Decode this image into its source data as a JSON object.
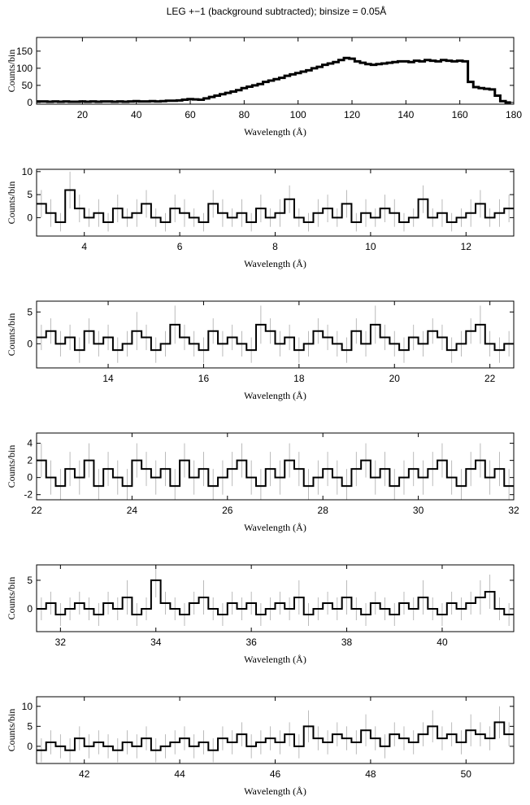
{
  "chart_data": [
    {
      "type": "step",
      "title": "LEG +−1 (background subtracted); binsize = 0.05Å",
      "x_label": "Wavelength (Å)",
      "y_label": "Counts/bin",
      "color": "#000000",
      "xlim": [
        3,
        180
      ],
      "ylim": [
        -5,
        190
      ],
      "xticks": [
        20,
        40,
        60,
        80,
        100,
        120,
        140,
        160,
        180
      ],
      "yticks": [
        0,
        50,
        100,
        150
      ],
      "x": [
        4,
        6,
        8,
        10,
        12,
        14,
        16,
        18,
        20,
        22,
        24,
        26,
        28,
        30,
        32,
        34,
        36,
        38,
        40,
        42,
        44,
        46,
        48,
        50,
        52,
        54,
        56,
        58,
        60,
        62,
        64,
        66,
        68,
        70,
        72,
        74,
        76,
        78,
        80,
        82,
        84,
        86,
        88,
        90,
        92,
        94,
        96,
        98,
        100,
        102,
        104,
        106,
        108,
        110,
        112,
        114,
        116,
        118,
        120,
        122,
        124,
        126,
        128,
        130,
        132,
        134,
        136,
        138,
        140,
        142,
        144,
        146,
        148,
        150,
        152,
        154,
        156,
        158,
        160,
        162,
        164,
        166,
        168,
        170,
        172,
        174,
        176,
        178
      ],
      "values": [
        3,
        3,
        2,
        3,
        2,
        3,
        2,
        2,
        3,
        2,
        3,
        2,
        3,
        3,
        2,
        3,
        2,
        3,
        4,
        3,
        3,
        4,
        3,
        4,
        5,
        5,
        6,
        8,
        10,
        9,
        8,
        12,
        16,
        20,
        24,
        28,
        32,
        36,
        42,
        46,
        50,
        54,
        60,
        64,
        68,
        72,
        78,
        82,
        86,
        90,
        94,
        100,
        104,
        110,
        114,
        118,
        124,
        130,
        128,
        120,
        116,
        112,
        110,
        112,
        114,
        116,
        118,
        120,
        120,
        118,
        122,
        120,
        124,
        122,
        120,
        124,
        122,
        120,
        122,
        120,
        60,
        45,
        42,
        40,
        38,
        20,
        4,
        0
      ]
    },
    {
      "type": "step",
      "x_label": "Wavelength (Å)",
      "y_label": "Counts/bin",
      "color": "#000000",
      "error_color": "#aaaaaa",
      "xlim": [
        3,
        13
      ],
      "ylim": [
        -4,
        10.5
      ],
      "xticks": [
        4,
        6,
        8,
        10,
        12
      ],
      "yticks": [
        0,
        5,
        10
      ],
      "x": [
        3.1,
        3.3,
        3.5,
        3.7,
        3.9,
        4.1,
        4.3,
        4.5,
        4.7,
        4.9,
        5.1,
        5.3,
        5.5,
        5.7,
        5.9,
        6.1,
        6.3,
        6.5,
        6.7,
        6.9,
        7.1,
        7.3,
        7.5,
        7.7,
        7.9,
        8.1,
        8.3,
        8.5,
        8.7,
        8.9,
        9.1,
        9.3,
        9.5,
        9.7,
        9.9,
        10.1,
        10.3,
        10.5,
        10.7,
        10.9,
        11.1,
        11.3,
        11.5,
        11.7,
        11.9,
        12.1,
        12.3,
        12.5,
        12.7,
        12.9
      ],
      "values": [
        3,
        1,
        -1,
        6,
        2,
        0,
        1,
        -1,
        2,
        0,
        1,
        3,
        0,
        -1,
        2,
        1,
        0,
        -1,
        3,
        1,
        0,
        1,
        -1,
        2,
        0,
        1,
        4,
        0,
        -1,
        1,
        2,
        0,
        3,
        -1,
        1,
        0,
        2,
        1,
        -1,
        0,
        4,
        0,
        1,
        -1,
        0,
        1,
        3,
        0,
        1,
        2
      ],
      "errors": [
        3,
        3,
        2,
        4,
        3,
        2,
        3,
        2,
        3,
        2,
        3,
        3,
        2,
        2,
        3,
        3,
        2,
        2,
        3,
        3,
        2,
        3,
        2,
        3,
        2,
        3,
        3,
        2,
        2,
        3,
        3,
        2,
        3,
        2,
        3,
        2,
        3,
        3,
        2,
        2,
        3,
        2,
        3,
        2,
        2,
        3,
        3,
        2,
        3,
        3
      ]
    },
    {
      "type": "step",
      "x_label": "Wavelength (Å)",
      "y_label": "Counts/bin",
      "color": "#000000",
      "error_color": "#aaaaaa",
      "xlim": [
        12.5,
        22.5
      ],
      "ylim": [
        -3.8,
        6.7
      ],
      "xticks": [
        14,
        16,
        18,
        20,
        22
      ],
      "yticks": [
        0,
        5
      ],
      "x": [
        12.6,
        12.8,
        13,
        13.2,
        13.4,
        13.6,
        13.8,
        14,
        14.2,
        14.4,
        14.6,
        14.8,
        15,
        15.2,
        15.4,
        15.6,
        15.8,
        16,
        16.2,
        16.4,
        16.6,
        16.8,
        17,
        17.2,
        17.4,
        17.6,
        17.8,
        18,
        18.2,
        18.4,
        18.6,
        18.8,
        19,
        19.2,
        19.4,
        19.6,
        19.8,
        20,
        20.2,
        20.4,
        20.6,
        20.8,
        21,
        21.2,
        21.4,
        21.6,
        21.8,
        22,
        22.2,
        22.4
      ],
      "values": [
        1,
        2,
        0,
        1,
        -1,
        2,
        0,
        1,
        -1,
        0,
        2,
        1,
        -1,
        0,
        3,
        1,
        0,
        -1,
        2,
        0,
        1,
        0,
        -1,
        3,
        2,
        0,
        1,
        -1,
        0,
        2,
        1,
        0,
        -1,
        2,
        0,
        3,
        1,
        0,
        -1,
        1,
        0,
        2,
        1,
        -1,
        0,
        2,
        3,
        0,
        -1,
        0
      ],
      "errors": [
        2,
        2,
        2,
        2,
        2,
        2,
        2,
        2,
        2,
        2,
        3,
        2,
        2,
        2,
        3,
        2,
        2,
        2,
        2,
        2,
        2,
        2,
        2,
        3,
        2,
        2,
        2,
        2,
        2,
        2,
        2,
        2,
        2,
        2,
        2,
        3,
        2,
        2,
        2,
        2,
        2,
        2,
        2,
        2,
        2,
        2,
        3,
        2,
        2,
        2
      ]
    },
    {
      "type": "step",
      "x_label": "Wavelength (Å)",
      "y_label": "Counts/bin",
      "color": "#000000",
      "error_color": "#aaaaaa",
      "xlim": [
        22,
        32
      ],
      "ylim": [
        -2.6,
        5.2
      ],
      "xticks": [
        22,
        24,
        26,
        28,
        30,
        32
      ],
      "yticks": [
        -2,
        0,
        2,
        4
      ],
      "x": [
        22.1,
        22.3,
        22.5,
        22.7,
        22.9,
        23.1,
        23.3,
        23.5,
        23.7,
        23.9,
        24.1,
        24.3,
        24.5,
        24.7,
        24.9,
        25.1,
        25.3,
        25.5,
        25.7,
        25.9,
        26.1,
        26.3,
        26.5,
        26.7,
        26.9,
        27.1,
        27.3,
        27.5,
        27.7,
        27.9,
        28.1,
        28.3,
        28.5,
        28.7,
        28.9,
        29.1,
        29.3,
        29.5,
        29.7,
        29.9,
        30.1,
        30.3,
        30.5,
        30.7,
        30.9,
        31.1,
        31.3,
        31.5,
        31.7,
        31.9
      ],
      "values": [
        2,
        0,
        -1,
        1,
        0,
        2,
        -1,
        1,
        0,
        -1,
        2,
        1,
        0,
        1,
        -1,
        2,
        0,
        1,
        -1,
        0,
        1,
        2,
        0,
        -1,
        1,
        0,
        2,
        1,
        -1,
        0,
        1,
        0,
        -1,
        1,
        2,
        0,
        1,
        -1,
        0,
        1,
        0,
        1,
        2,
        0,
        -1,
        1,
        2,
        0,
        1,
        -1
      ],
      "errors": [
        2,
        2,
        2,
        2,
        2,
        2,
        2,
        2,
        2,
        2,
        2,
        2,
        2,
        2,
        2,
        2,
        2,
        2,
        2,
        2,
        2,
        2,
        2,
        2,
        2,
        2,
        2,
        2,
        2,
        2,
        2,
        2,
        2,
        2,
        2,
        2,
        2,
        2,
        2,
        2,
        2,
        2,
        2,
        2,
        2,
        2,
        2,
        2,
        2,
        2
      ]
    },
    {
      "type": "step",
      "x_label": "Wavelength (Å)",
      "y_label": "Counts/bin",
      "color": "#000000",
      "error_color": "#aaaaaa",
      "xlim": [
        31.5,
        41.5
      ],
      "ylim": [
        -4,
        7.7
      ],
      "xticks": [
        32,
        34,
        36,
        38,
        40
      ],
      "yticks": [
        0,
        5
      ],
      "x": [
        31.6,
        31.8,
        32,
        32.2,
        32.4,
        32.6,
        32.8,
        33,
        33.2,
        33.4,
        33.6,
        33.8,
        34,
        34.2,
        34.4,
        34.6,
        34.8,
        35,
        35.2,
        35.4,
        35.6,
        35.8,
        36,
        36.2,
        36.4,
        36.6,
        36.8,
        37,
        37.2,
        37.4,
        37.6,
        37.8,
        38,
        38.2,
        38.4,
        38.6,
        38.8,
        39,
        39.2,
        39.4,
        39.6,
        39.8,
        40,
        40.2,
        40.4,
        40.6,
        40.8,
        41,
        41.2,
        41.4
      ],
      "values": [
        0,
        1,
        -1,
        0,
        1,
        0,
        -1,
        1,
        0,
        2,
        -1,
        0,
        5,
        1,
        0,
        -1,
        1,
        2,
        0,
        -1,
        1,
        0,
        1,
        -1,
        0,
        1,
        0,
        2,
        -1,
        0,
        1,
        0,
        2,
        0,
        -1,
        1,
        0,
        -1,
        1,
        0,
        2,
        0,
        -1,
        1,
        0,
        1,
        2,
        3,
        0,
        -1
      ],
      "errors": [
        2,
        2,
        2,
        2,
        2,
        2,
        2,
        2,
        2,
        3,
        2,
        2,
        3,
        2,
        2,
        2,
        2,
        3,
        2,
        2,
        2,
        2,
        2,
        2,
        2,
        2,
        2,
        3,
        2,
        2,
        2,
        2,
        3,
        2,
        2,
        2,
        2,
        2,
        2,
        2,
        3,
        2,
        2,
        2,
        2,
        2,
        3,
        3,
        2,
        2
      ]
    },
    {
      "type": "step",
      "x_label": "Wavelength (Å)",
      "y_label": "Counts/bin",
      "color": "#000000",
      "error_color": "#aaaaaa",
      "xlim": [
        41,
        51
      ],
      "ylim": [
        -4.3,
        12.4
      ],
      "xticks": [
        42,
        44,
        46,
        48,
        50
      ],
      "yticks": [
        0,
        5,
        10
      ],
      "x": [
        41.1,
        41.3,
        41.5,
        41.7,
        41.9,
        42.1,
        42.3,
        42.5,
        42.7,
        42.9,
        43.1,
        43.3,
        43.5,
        43.7,
        43.9,
        44.1,
        44.3,
        44.5,
        44.7,
        44.9,
        45.1,
        45.3,
        45.5,
        45.7,
        45.9,
        46.1,
        46.3,
        46.5,
        46.7,
        46.9,
        47.1,
        47.3,
        47.5,
        47.7,
        47.9,
        48.1,
        48.3,
        48.5,
        48.7,
        48.9,
        49.1,
        49.3,
        49.5,
        49.7,
        49.9,
        50.1,
        50.3,
        50.5,
        50.7,
        50.9
      ],
      "values": [
        -1,
        1,
        0,
        -1,
        2,
        0,
        1,
        0,
        -1,
        1,
        0,
        2,
        -1,
        0,
        1,
        2,
        0,
        1,
        -1,
        2,
        1,
        3,
        0,
        1,
        2,
        1,
        3,
        0,
        5,
        2,
        1,
        3,
        2,
        1,
        4,
        2,
        0,
        3,
        2,
        1,
        3,
        5,
        2,
        3,
        1,
        4,
        3,
        2,
        6,
        3
      ],
      "errors": [
        3,
        3,
        3,
        3,
        3,
        3,
        3,
        3,
        3,
        3,
        3,
        3,
        3,
        3,
        3,
        3,
        3,
        3,
        3,
        3,
        3,
        3,
        3,
        3,
        3,
        3,
        3,
        3,
        4,
        3,
        3,
        3,
        3,
        3,
        4,
        3,
        3,
        3,
        3,
        3,
        3,
        4,
        3,
        3,
        3,
        4,
        3,
        3,
        4,
        3
      ]
    }
  ]
}
